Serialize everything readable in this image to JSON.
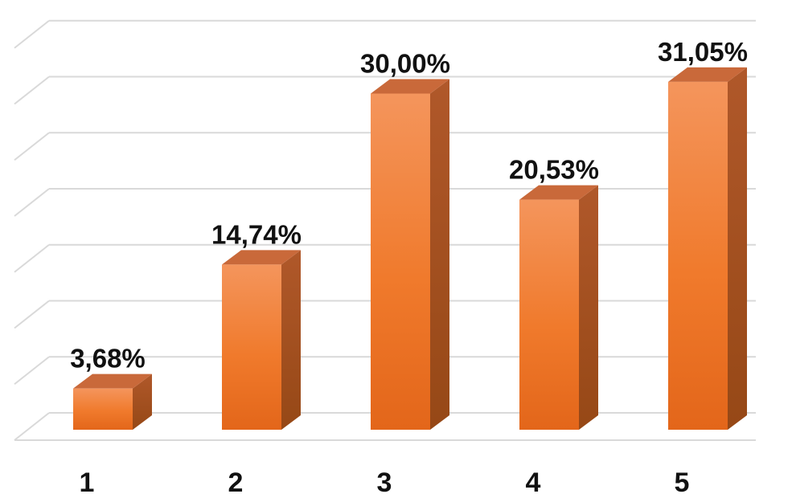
{
  "chart_data": {
    "type": "bar",
    "style": "3d-column",
    "categories": [
      "1",
      "2",
      "3",
      "4",
      "5"
    ],
    "values": [
      3.68,
      14.74,
      30.0,
      20.53,
      31.05
    ],
    "labels": [
      "3,68%",
      "14,74%",
      "30,00%",
      "20,53%",
      "31,05%"
    ],
    "unit": "%",
    "ylim": [
      0,
      35
    ],
    "grid": true,
    "legend": "none",
    "title": "",
    "xlabel": "",
    "ylabel": ""
  },
  "colors": {
    "bar_front_top": "#f4955c",
    "bar_front_mid": "#f07a2c",
    "bar_front_bottom": "#e3661a",
    "bar_side": "#a4521f",
    "bar_top": "#c9693a",
    "grid": "#d9d9d9"
  }
}
